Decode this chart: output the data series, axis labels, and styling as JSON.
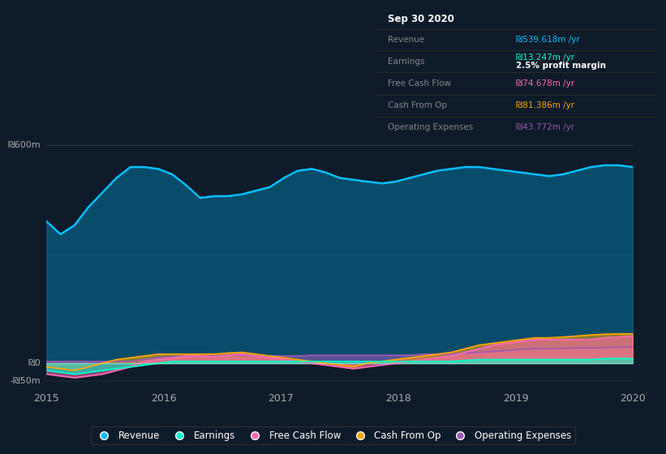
{
  "bg_color": "#0d1b2a",
  "plot_bg_color": "#0d1b2a",
  "ylabel_600": "₪600m",
  "ylabel_0": "₪0",
  "ylabel_neg50": "-₪50m",
  "x_labels": [
    "2015",
    "2016",
    "2017",
    "2018",
    "2019",
    "2020"
  ],
  "ylim": [
    -75,
    650
  ],
  "colors": {
    "revenue": "#00bfff",
    "earnings": "#00ffcc",
    "free_cash_flow": "#ff69b4",
    "cash_from_op": "#ffa500",
    "operating_expenses": "#9b59b6"
  },
  "info_box": {
    "date": "Sep 30 2020",
    "revenue_label": "Revenue",
    "revenue_val": "₪539.618m /yr",
    "earnings_label": "Earnings",
    "earnings_val": "₪13.247m /yr",
    "profit_margin": "2.5% profit margin",
    "fcf_label": "Free Cash Flow",
    "fcf_val": "₪74.678m /yr",
    "cfop_label": "Cash From Op",
    "cfop_val": "₪81.386m /yr",
    "opex_label": "Operating Expenses",
    "opex_val": "₪43.772m /yr"
  },
  "revenue_data": [
    390,
    355,
    380,
    430,
    470,
    510,
    540,
    540,
    535,
    520,
    490,
    455,
    460,
    460,
    465,
    475,
    485,
    510,
    530,
    535,
    525,
    510,
    505,
    500,
    495,
    500,
    510,
    520,
    530,
    535,
    540,
    540,
    535,
    530,
    525,
    520,
    515,
    520,
    530,
    540,
    545,
    545,
    540
  ],
  "earnings_data": [
    -20,
    -25,
    -30,
    -25,
    -20,
    -15,
    -10,
    -5,
    0,
    5,
    5,
    5,
    5,
    5,
    5,
    5,
    5,
    5,
    5,
    5,
    5,
    5,
    5,
    5,
    5,
    5,
    5,
    5,
    5,
    5,
    8,
    10,
    10,
    10,
    10,
    10,
    10,
    10,
    10,
    10,
    13,
    13,
    13
  ],
  "free_cash_flow_data": [
    -30,
    -35,
    -40,
    -35,
    -30,
    -20,
    -10,
    5,
    10,
    15,
    20,
    20,
    18,
    22,
    25,
    20,
    15,
    10,
    5,
    0,
    -5,
    -10,
    -15,
    -10,
    -5,
    0,
    5,
    10,
    15,
    20,
    30,
    40,
    50,
    55,
    60,
    65,
    65,
    65,
    65,
    65,
    70,
    72,
    75
  ],
  "cash_from_op_data": [
    -10,
    -15,
    -20,
    -10,
    0,
    10,
    15,
    20,
    25,
    25,
    25,
    25,
    25,
    28,
    30,
    25,
    20,
    15,
    10,
    5,
    0,
    -5,
    -10,
    0,
    5,
    10,
    15,
    20,
    25,
    30,
    40,
    50,
    55,
    60,
    65,
    70,
    70,
    72,
    75,
    78,
    80,
    81,
    81
  ],
  "operating_expenses_data": [
    5,
    5,
    5,
    5,
    5,
    5,
    5,
    10,
    15,
    18,
    20,
    20,
    20,
    22,
    22,
    20,
    20,
    20,
    20,
    22,
    22,
    22,
    22,
    22,
    22,
    22,
    22,
    25,
    25,
    25,
    28,
    30,
    32,
    35,
    38,
    40,
    40,
    41,
    42,
    42,
    43,
    44,
    44
  ]
}
